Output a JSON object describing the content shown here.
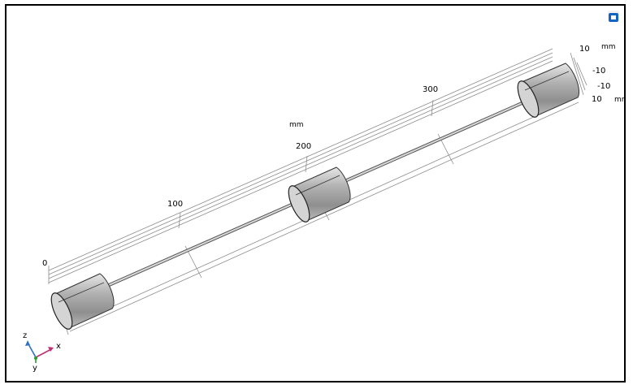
{
  "axes": {
    "length_ticks": [
      "0",
      "100",
      "200",
      "300"
    ],
    "length_unit": "mm",
    "z_ticks": [
      "10",
      "-10"
    ],
    "z_unit": "mm",
    "y_ticks": [
      "-10",
      "10"
    ],
    "y_unit": "mm"
  },
  "triad": {
    "x": "x",
    "y": "y",
    "z": "z"
  },
  "colors": {
    "triad_x": "#c03070",
    "triad_y": "#2aa02a",
    "triad_z": "#3070c0",
    "grid": "#8c8c8c",
    "cylinder_body": "#a8a8a8",
    "view_button": "#1565c0"
  },
  "icons": {
    "view_toggle": "view-toggle-icon"
  }
}
